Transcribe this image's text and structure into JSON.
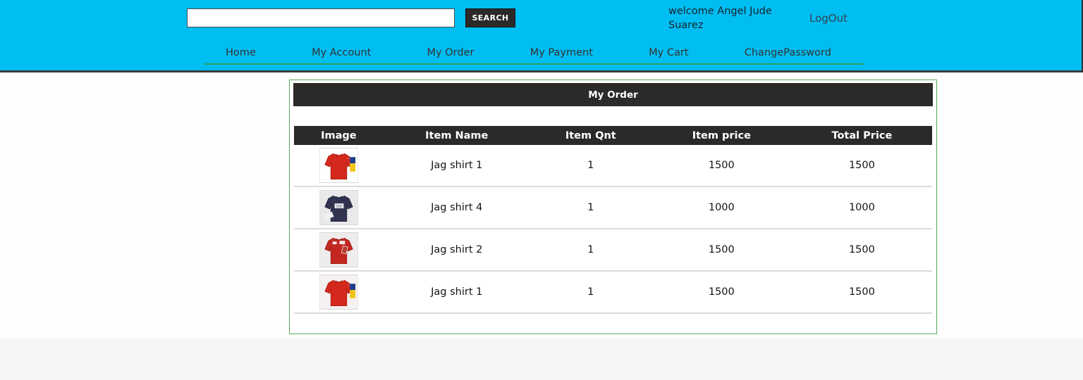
{
  "colors": {
    "header_bg": "#00bdf2",
    "dark_bar": "#2b2a29",
    "panel_border_green": "#58aa58",
    "nav_underline_green": "#2ba05a"
  },
  "header": {
    "search": {
      "value": "",
      "placeholder": "",
      "button_label": "SEARCH"
    },
    "welcome_text": "welcome Angel Jude Suarez",
    "logout_label": "LogOut",
    "nav_items": [
      {
        "label": "Home"
      },
      {
        "label": "My Account"
      },
      {
        "label": "My Order"
      },
      {
        "label": "My Payment"
      },
      {
        "label": "My Cart"
      },
      {
        "label": "ChangePassword"
      }
    ]
  },
  "order_panel": {
    "title": "My Order",
    "table": {
      "columns": [
        "Image",
        "Item Name",
        "Item Qnt",
        "Item price",
        "Total Price"
      ],
      "rows": [
        {
          "image": {
            "icon": "red-tshirt-with-tag-photo",
            "bg": "#ffffff",
            "shirt": "#d5281c",
            "shirt_dark": "#a81c12",
            "tag_top": "#1f3d8c",
            "tag_bottom": "#f0c419"
          },
          "item_name": "Jag shirt 1",
          "item_qnt": "1",
          "item_price": "1500",
          "total_price": "1500"
        },
        {
          "image": {
            "icon": "navy-tshirt-with-labels-photo",
            "bg": "#e9e9e9",
            "shirt": "#31334f",
            "shirt_dark": "#22233a",
            "label": "#f2f2f2"
          },
          "item_name": "Jag shirt 4",
          "item_qnt": "1",
          "item_price": "1000",
          "total_price": "1000"
        },
        {
          "image": {
            "icon": "red-tshirt-with-graphic-photo",
            "bg": "#efecec",
            "shirt": "#c4271f",
            "shirt_dark": "#981a14",
            "graphic": "#f0e8e4"
          },
          "item_name": "Jag shirt 2",
          "item_qnt": "1",
          "item_price": "1500",
          "total_price": "1500"
        },
        {
          "image": {
            "icon": "red-tshirt-with-tag-photo",
            "bg": "#f4f1f0",
            "shirt": "#d5281c",
            "shirt_dark": "#a81c12",
            "tag_top": "#1f3d8c",
            "tag_bottom": "#f0c419"
          },
          "item_name": "Jag shirt 1",
          "item_qnt": "1",
          "item_price": "1500",
          "total_price": "1500"
        }
      ]
    }
  }
}
